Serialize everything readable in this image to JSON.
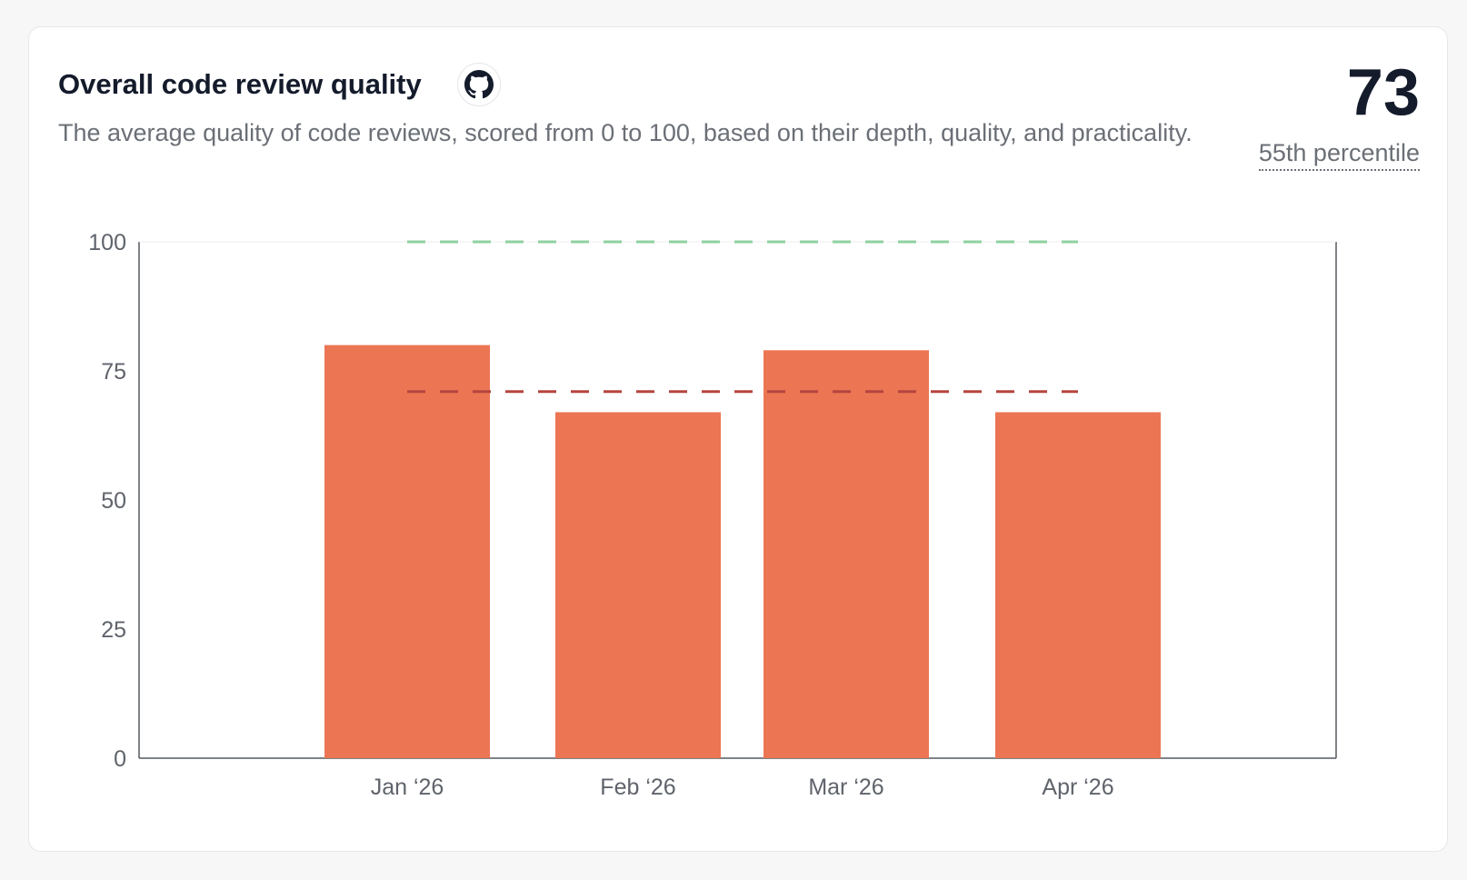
{
  "card": {
    "title": "Overall code review quality",
    "source_icon": "github-icon",
    "description": "The average quality of code reviews, scored from 0 to 100, based on their depth, quality, and practicality.",
    "score": "73",
    "percentile_label": "55th percentile"
  },
  "colors": {
    "bar": "#ec7553",
    "benchmark_top": "#8fd1a0",
    "benchmark_median": "#b5443f",
    "axis": "#55585e"
  },
  "chart_data": {
    "type": "bar",
    "categories": [
      "Jan ‘26",
      "Feb ‘26",
      "Mar ‘26",
      "Apr ‘26"
    ],
    "values": [
      80,
      67,
      79,
      67
    ],
    "ylim": [
      0,
      100
    ],
    "yticks": [
      0,
      25,
      50,
      75,
      100
    ],
    "reference_lines": [
      {
        "value": 100,
        "style": "dashed",
        "color": "#8fd1a0"
      },
      {
        "value": 71,
        "style": "dashed",
        "color": "#b5443f"
      }
    ],
    "grid": false,
    "legend": "none"
  }
}
